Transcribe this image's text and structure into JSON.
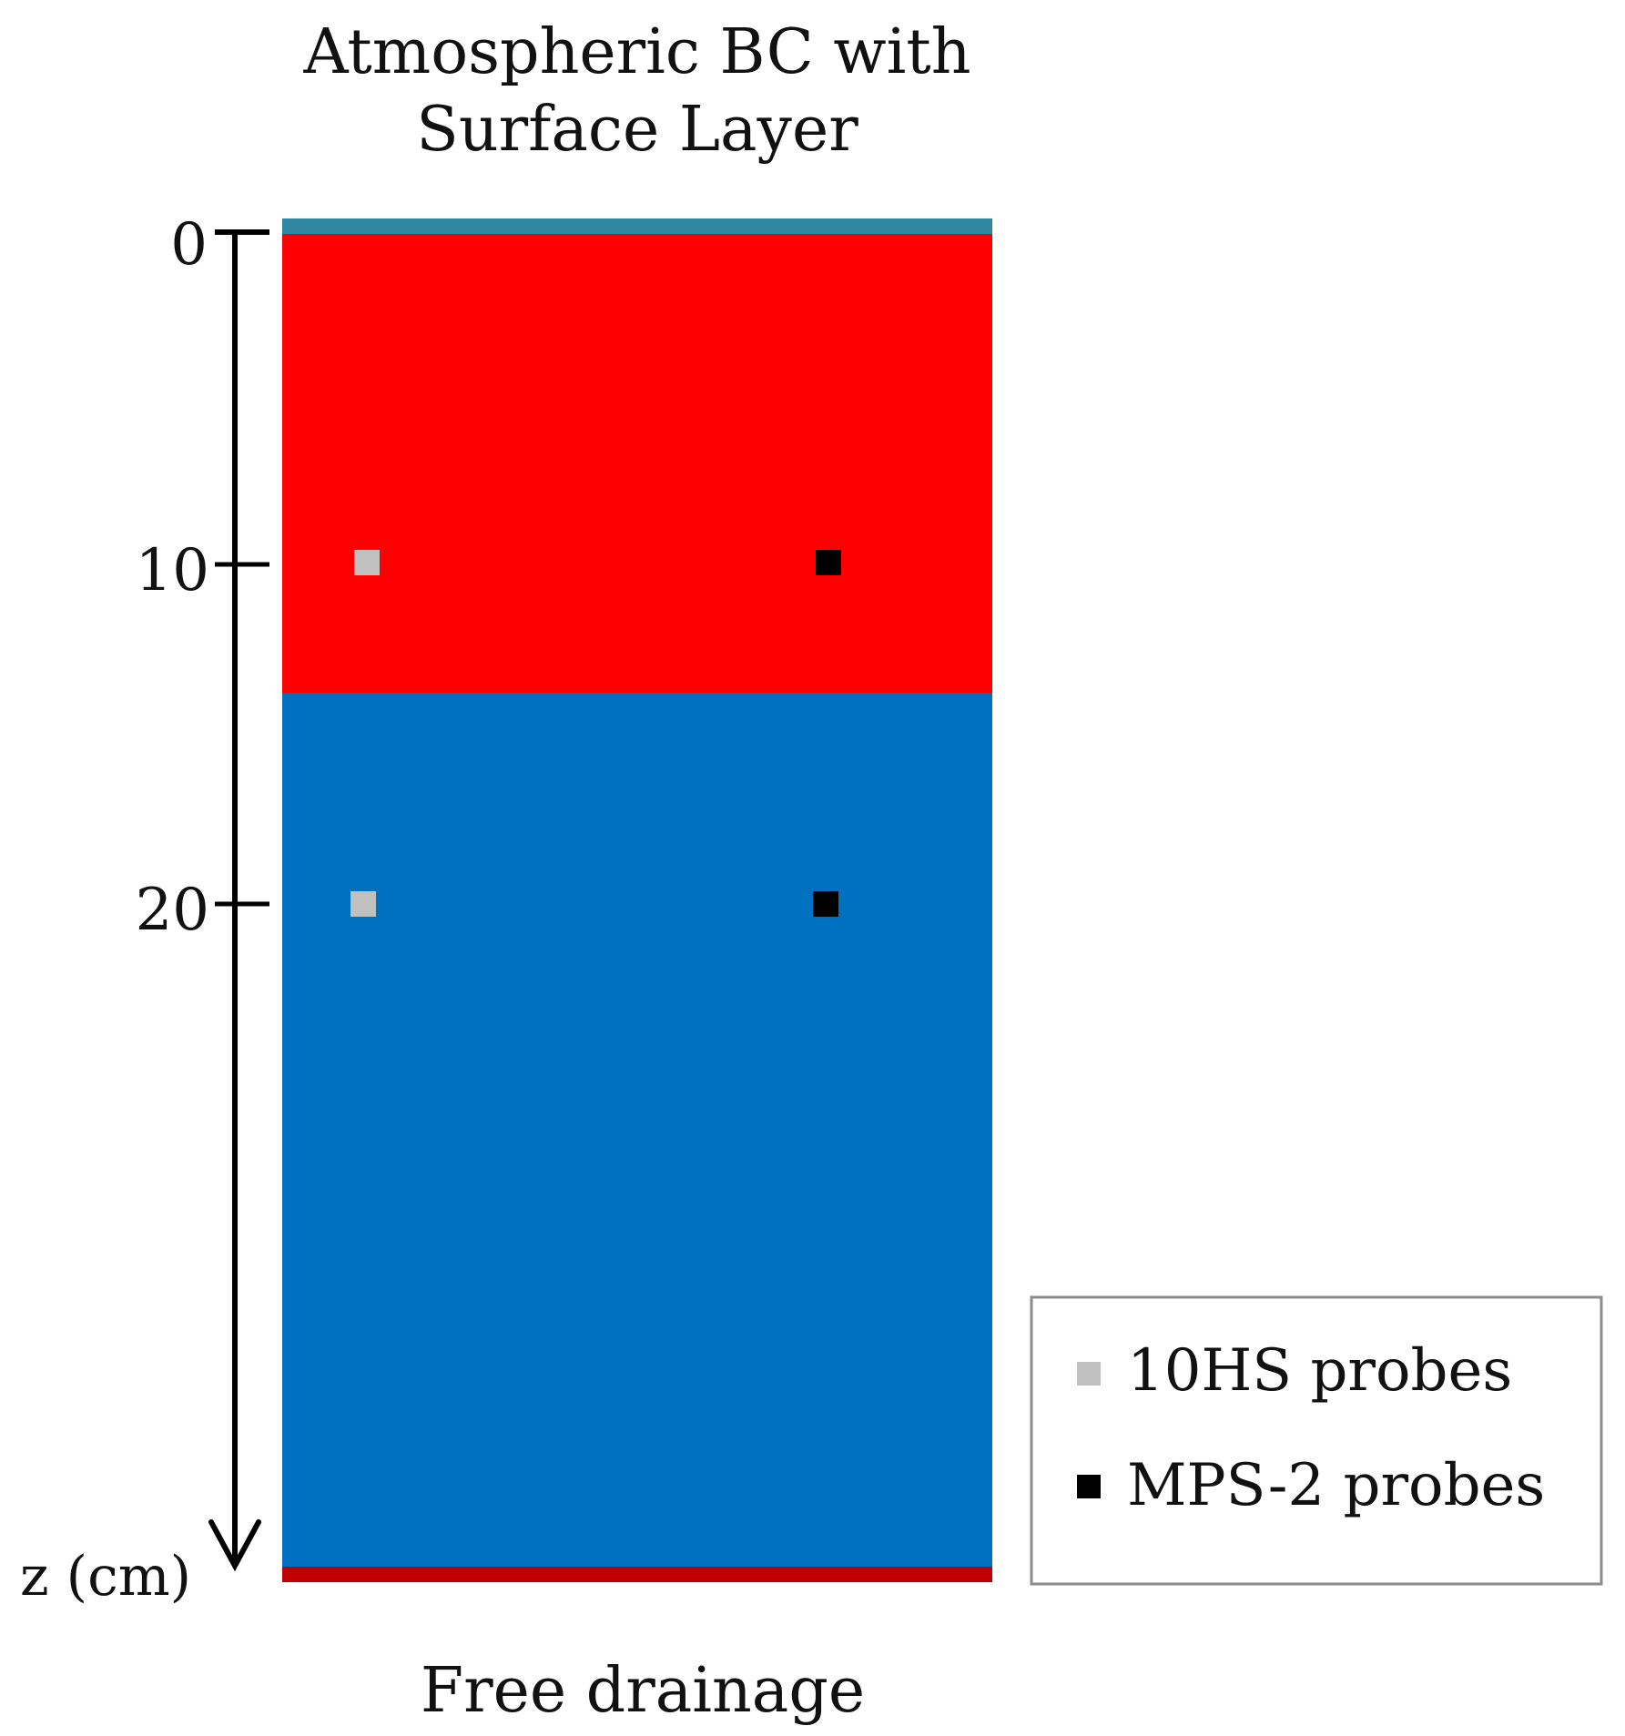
{
  "title": {
    "line1": "Atmospheric BC with",
    "line2": "Surface Layer"
  },
  "bottom_boundary_label": "Free drainage",
  "axis": {
    "label": "z (cm)",
    "ticks": [
      "0",
      "10",
      "20"
    ]
  },
  "legend": {
    "items": [
      {
        "label": "10HS probes",
        "color": "#c0c0c0"
      },
      {
        "label": "MPS-2 probes",
        "color": "#000000"
      }
    ]
  },
  "colors": {
    "surface_layer": "#2e86a1",
    "upper_layer": "#ff0000",
    "lower_layer": "#0070c0",
    "bottom_boundary": "#c00000",
    "probe_10hs": "#c0c0c0",
    "probe_mps2": "#000000"
  }
}
